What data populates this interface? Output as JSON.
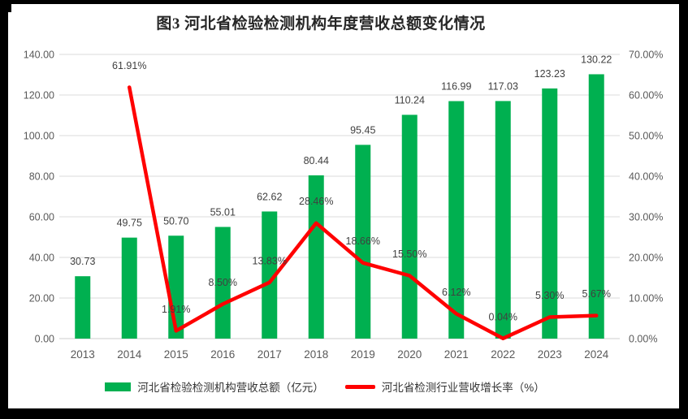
{
  "frame": {
    "background": "#000000",
    "page_background": "#FFFFFF"
  },
  "chart_data": {
    "type": "combo",
    "title": "图3 河北省检验检测机构年度营收总额变化情况",
    "categories": [
      "2013",
      "2014",
      "2015",
      "2016",
      "2017",
      "2018",
      "2019",
      "2020",
      "2021",
      "2022",
      "2023",
      "2024"
    ],
    "series": [
      {
        "name": "河北省检验检测机构营收总额（亿元）",
        "type": "bar",
        "axis": "left",
        "color": "#00B050",
        "values": [
          30.73,
          49.75,
          50.7,
          55.01,
          62.62,
          80.44,
          95.45,
          110.24,
          116.99,
          117.03,
          123.23,
          130.22
        ],
        "labels": [
          "30.73",
          "49.75",
          "50.70",
          "55.01",
          "62.62",
          "80.44",
          "95.45",
          "110.24",
          "116.99",
          "117.03",
          "123.23",
          "130.22"
        ]
      },
      {
        "name": "河北省检测行业营收增长率（%）",
        "type": "line",
        "axis": "right",
        "color": "#FF0000",
        "values": [
          null,
          61.91,
          1.91,
          8.5,
          13.83,
          28.46,
          18.66,
          15.5,
          6.12,
          0.04,
          5.3,
          5.67
        ],
        "labels": [
          null,
          "61.91%",
          "1.91%",
          "8.50%",
          "13.83%",
          "28.46%",
          "18.66%",
          "15.50%",
          "6.12%",
          "0.04%",
          "5.30%",
          "5.67%"
        ]
      }
    ],
    "left_axis": {
      "min": 0,
      "max": 140,
      "step": 20,
      "tick_labels": [
        "0.00",
        "20.00",
        "40.00",
        "60.00",
        "80.00",
        "100.00",
        "120.00",
        "140.00"
      ]
    },
    "right_axis": {
      "min": 0,
      "max": 70,
      "step": 10,
      "tick_labels": [
        "0.00%",
        "10.00%",
        "20.00%",
        "30.00%",
        "40.00%",
        "50.00%",
        "60.00%",
        "70.00%"
      ]
    },
    "grid": true,
    "legend_position": "bottom",
    "style": {
      "grid_color": "#E2E2E2",
      "axis_line_color": "#D6D6D6",
      "tick_text_color": "#595959",
      "data_label_color": "#404040",
      "title_color": "#262626",
      "legend_text_color": "#333333"
    }
  }
}
